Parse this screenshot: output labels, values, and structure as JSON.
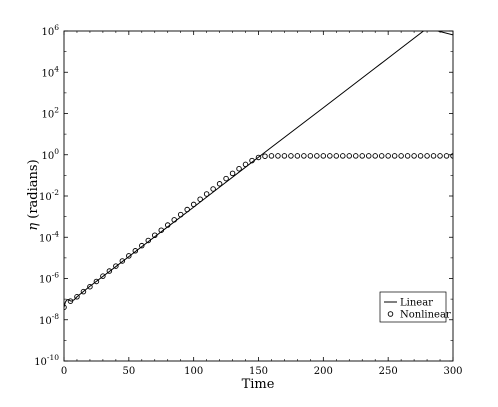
{
  "chart_data": {
    "type": "line",
    "title": "",
    "xlabel": "Time",
    "ylabel": "η (radians)",
    "ylabel_symbol": "η",
    "ylabel_text": " (radians)",
    "xlim": [
      0,
      300
    ],
    "ylim": [
      1e-10,
      1000000.0
    ],
    "yscale": "log",
    "grid": false,
    "legend_position": "lower-right",
    "x_ticks": [
      0,
      50,
      100,
      150,
      200,
      250,
      300
    ],
    "y_ticks": [
      {
        "base": "10",
        "exp": "-10"
      },
      {
        "base": "10",
        "exp": "-8"
      },
      {
        "base": "10",
        "exp": "-6"
      },
      {
        "base": "10",
        "exp": "-4"
      },
      {
        "base": "10",
        "exp": "-2"
      },
      {
        "base": "10",
        "exp": "0"
      },
      {
        "base": "10",
        "exp": "2"
      },
      {
        "base": "10",
        "exp": "4"
      },
      {
        "base": "10",
        "exp": "6"
      }
    ],
    "series": [
      {
        "name": "Linear",
        "style": "solid-line",
        "color": "#000000",
        "points": [
          [
            0,
            4e-08
          ],
          [
            1,
            7e-08
          ],
          [
            2,
            9e-08
          ],
          [
            3,
            9.5e-08
          ],
          [
            4,
            9e-08
          ],
          [
            5,
            8.2e-08
          ],
          [
            6,
            8e-08
          ],
          [
            8,
            9.5e-08
          ],
          [
            10,
            1.3e-07
          ],
          [
            20,
            4.2e-07
          ],
          [
            40,
            3.8e-06
          ],
          [
            60,
            3.5e-05
          ],
          [
            80,
            0.00032
          ],
          [
            100,
            0.0029
          ],
          [
            120,
            0.027
          ],
          [
            140,
            0.25
          ],
          [
            160,
            2.3
          ],
          [
            180,
            21
          ],
          [
            200,
            190
          ],
          [
            220,
            1750
          ],
          [
            240,
            16000
          ],
          [
            260,
            148000
          ],
          [
            280,
            1360000.0
          ],
          [
            300,
            650000.0
          ]
        ]
      },
      {
        "name": "Nonlinear",
        "style": "open-circle",
        "color": "#000000",
        "points": [
          [
            0,
            4e-08
          ],
          [
            5,
            8e-08
          ],
          [
            10,
            1.3e-07
          ],
          [
            15,
            2.3e-07
          ],
          [
            20,
            4e-07
          ],
          [
            25,
            7.2e-07
          ],
          [
            30,
            1.3e-06
          ],
          [
            35,
            2.3e-06
          ],
          [
            40,
            4e-06
          ],
          [
            45,
            7.1e-06
          ],
          [
            50,
            1.25e-05
          ],
          [
            55,
            2.2e-05
          ],
          [
            60,
            3.9e-05
          ],
          [
            65,
            7e-05
          ],
          [
            70,
            0.000125
          ],
          [
            75,
            0.00022
          ],
          [
            80,
            0.00039
          ],
          [
            85,
            0.0007
          ],
          [
            90,
            0.00125
          ],
          [
            95,
            0.0022
          ],
          [
            100,
            0.0039
          ],
          [
            105,
            0.007
          ],
          [
            110,
            0.0125
          ],
          [
            115,
            0.022
          ],
          [
            120,
            0.039
          ],
          [
            125,
            0.07
          ],
          [
            130,
            0.125
          ],
          [
            135,
            0.21
          ],
          [
            140,
            0.34
          ],
          [
            145,
            0.52
          ],
          [
            150,
            0.74
          ],
          [
            155,
            0.85
          ],
          [
            160,
            0.88
          ],
          [
            165,
            0.88
          ],
          [
            170,
            0.88
          ],
          [
            175,
            0.88
          ],
          [
            180,
            0.88
          ],
          [
            185,
            0.88
          ],
          [
            190,
            0.88
          ],
          [
            195,
            0.88
          ],
          [
            200,
            0.88
          ],
          [
            205,
            0.88
          ],
          [
            210,
            0.88
          ],
          [
            215,
            0.88
          ],
          [
            220,
            0.88
          ],
          [
            225,
            0.88
          ],
          [
            230,
            0.88
          ],
          [
            235,
            0.88
          ],
          [
            240,
            0.88
          ],
          [
            245,
            0.88
          ],
          [
            250,
            0.88
          ],
          [
            255,
            0.88
          ],
          [
            260,
            0.88
          ],
          [
            265,
            0.88
          ],
          [
            270,
            0.88
          ],
          [
            275,
            0.88
          ],
          [
            280,
            0.88
          ],
          [
            285,
            0.88
          ],
          [
            290,
            0.88
          ],
          [
            295,
            0.88
          ],
          [
            300,
            0.88
          ]
        ]
      }
    ],
    "legend": [
      {
        "label": "Linear",
        "marker": "line"
      },
      {
        "label": "Nonlinear",
        "marker": "circle"
      }
    ]
  }
}
